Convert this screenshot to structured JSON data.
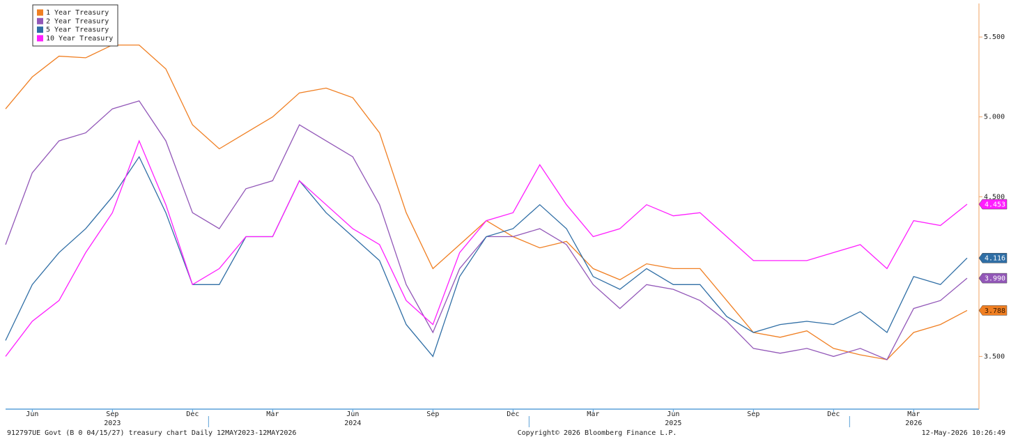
{
  "chart_data": {
    "type": "line",
    "x": [
      "2023-05",
      "2023-06",
      "2023-07",
      "2023-08",
      "2023-09",
      "2023-10",
      "2023-11",
      "2023-12",
      "2024-01",
      "2024-02",
      "2024-03",
      "2024-04",
      "2024-05",
      "2024-06",
      "2024-07",
      "2024-08",
      "2024-09",
      "2024-10",
      "2024-11",
      "2024-12",
      "2025-01",
      "2025-02",
      "2025-03",
      "2025-04",
      "2025-05",
      "2025-06",
      "2025-07",
      "2025-08",
      "2025-09",
      "2025-10",
      "2025-11",
      "2025-12",
      "2026-01",
      "2026-02",
      "2026-03",
      "2026-04",
      "2026-05"
    ],
    "series": [
      {
        "name": "1 Year Treasury",
        "color": "#f07f22",
        "tag_text": "#3a1a00",
        "end_label": "3.788",
        "values": [
          5.05,
          5.25,
          5.38,
          5.37,
          5.45,
          5.45,
          5.3,
          4.95,
          4.8,
          4.9,
          5.0,
          5.15,
          5.18,
          5.12,
          4.9,
          4.4,
          4.05,
          4.2,
          4.35,
          4.25,
          4.18,
          4.22,
          4.05,
          3.98,
          4.08,
          4.05,
          4.05,
          3.85,
          3.65,
          3.62,
          3.66,
          3.55,
          3.51,
          3.48,
          3.65,
          3.7,
          3.788
        ]
      },
      {
        "name": "2 Year Treasury",
        "color": "#9257b8",
        "tag_text": "#ffffff",
        "end_label": "3.990",
        "values": [
          4.2,
          4.65,
          4.85,
          4.9,
          5.05,
          5.1,
          4.85,
          4.4,
          4.3,
          4.55,
          4.6,
          4.95,
          4.85,
          4.75,
          4.45,
          3.95,
          3.65,
          4.05,
          4.25,
          4.25,
          4.3,
          4.2,
          3.95,
          3.8,
          3.95,
          3.92,
          3.85,
          3.72,
          3.55,
          3.52,
          3.55,
          3.5,
          3.55,
          3.48,
          3.8,
          3.85,
          3.99
        ]
      },
      {
        "name": "5 Year Treasury",
        "color": "#2f6ea5",
        "tag_text": "#ffffff",
        "end_label": "4.116",
        "values": [
          3.6,
          3.95,
          4.15,
          4.3,
          4.5,
          4.75,
          4.4,
          3.95,
          3.95,
          4.25,
          4.25,
          4.6,
          4.4,
          4.25,
          4.1,
          3.7,
          3.5,
          4.0,
          4.25,
          4.3,
          4.45,
          4.3,
          4.0,
          3.92,
          4.05,
          3.95,
          3.95,
          3.75,
          3.65,
          3.7,
          3.72,
          3.7,
          3.78,
          3.65,
          4.0,
          3.95,
          4.116
        ]
      },
      {
        "name": "10 Year Treasury",
        "color": "#ff1eff",
        "tag_text": "#ffffff",
        "end_label": "4.453",
        "values": [
          3.5,
          3.72,
          3.85,
          4.15,
          4.4,
          4.85,
          4.45,
          3.95,
          4.05,
          4.25,
          4.25,
          4.6,
          4.45,
          4.3,
          4.2,
          3.85,
          3.7,
          4.15,
          4.35,
          4.4,
          4.7,
          4.45,
          4.25,
          4.3,
          4.45,
          4.38,
          4.4,
          4.25,
          4.1,
          4.1,
          4.1,
          4.15,
          4.2,
          4.05,
          4.35,
          4.32,
          4.453
        ]
      }
    ],
    "ylim": [
      3.17,
      5.71
    ],
    "yticks": [
      {
        "value": 3.5,
        "label": "3.500"
      },
      {
        "value": 4.5,
        "label": "4.500"
      },
      {
        "value": 5,
        "label": "5.000"
      },
      {
        "value": 5.5,
        "label": "5.500"
      }
    ],
    "xticks": [
      {
        "value": "2023-06",
        "label": "Jun"
      },
      {
        "value": "2023-09",
        "label": "Sep"
      },
      {
        "value": "2023-12",
        "label": "Dec"
      },
      {
        "value": "2024-03",
        "label": "Mar"
      },
      {
        "value": "2024-06",
        "label": "Jun"
      },
      {
        "value": "2024-09",
        "label": "Sep"
      },
      {
        "value": "2024-12",
        "label": "Dec"
      },
      {
        "value": "2025-03",
        "label": "Mar"
      },
      {
        "value": "2025-06",
        "label": "Jun"
      },
      {
        "value": "2025-09",
        "label": "Sep"
      },
      {
        "value": "2025-12",
        "label": "Dec"
      },
      {
        "value": "2026-03",
        "label": "Mar"
      }
    ],
    "year_labels": [
      {
        "value": "2023-09",
        "label": "2023"
      },
      {
        "value": "2024-06",
        "label": "2024"
      },
      {
        "value": "2025-06",
        "label": "2025"
      },
      {
        "value": "2026-03",
        "label": "2026"
      }
    ],
    "legend": "top-left",
    "footer_left": "912797UE Govt (B 0 04/15/27) treasury chart Daily 12MAY2023-12MAY2026",
    "footer_center": "Copyright© 2026 Bloomberg Finance L.P.",
    "footer_right": "12-May-2026 10:26:49"
  }
}
